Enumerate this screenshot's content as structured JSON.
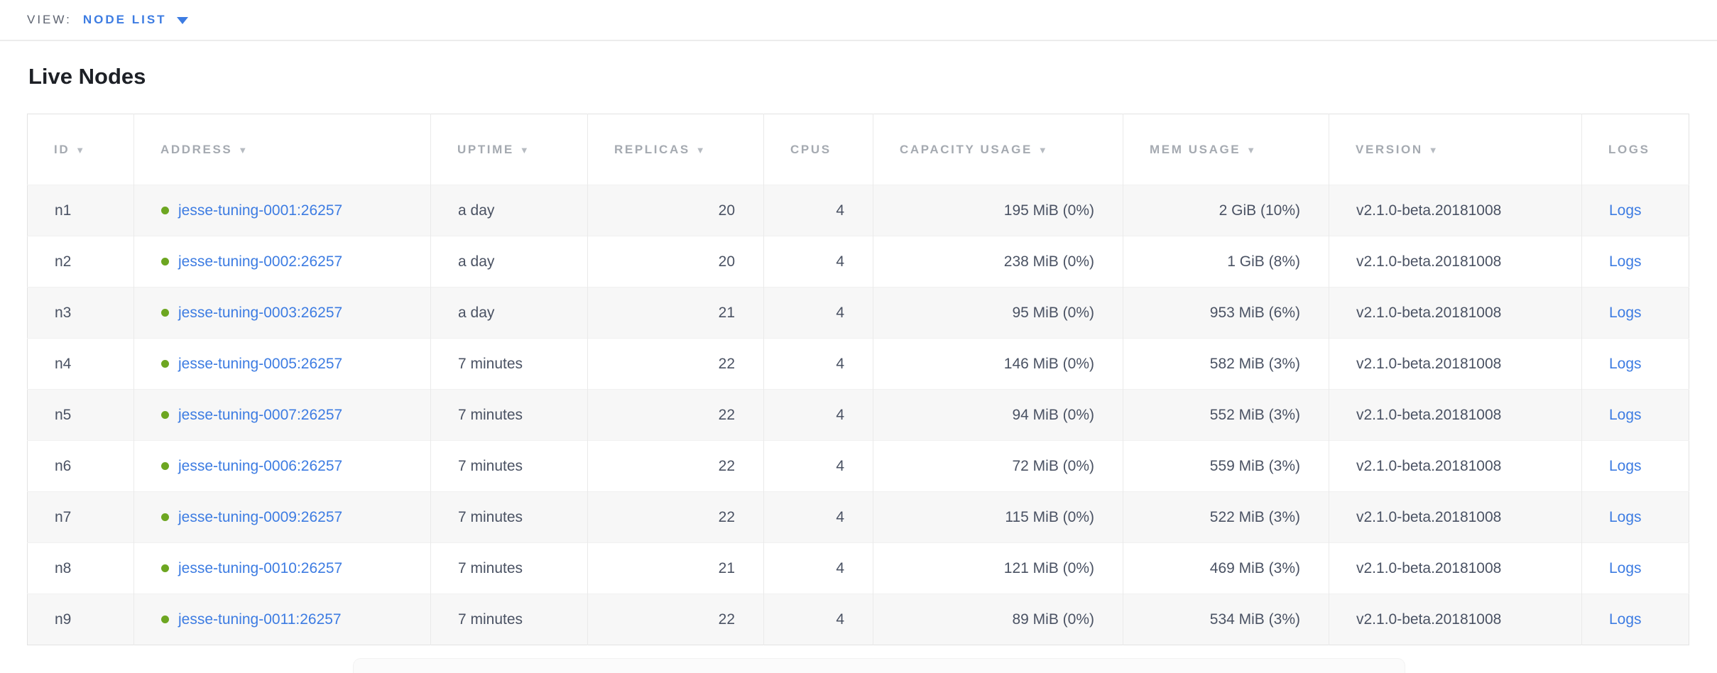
{
  "view_bar": {
    "label": "VIEW:",
    "selected": "NODE LIST"
  },
  "page": {
    "title": "Live Nodes"
  },
  "icons": {
    "sort_desc": "▼",
    "live_dot": "circle-green"
  },
  "colors": {
    "link_blue": "#3d7ce2",
    "live_green": "#6da621",
    "header_gray": "#a5aab1",
    "body_text": "#4a5263",
    "row_alt_bg": "#f7f7f7"
  },
  "table": {
    "columns": [
      {
        "id": "id",
        "label": "ID",
        "sortable": true
      },
      {
        "id": "address",
        "label": "ADDRESS",
        "sortable": true
      },
      {
        "id": "uptime",
        "label": "UPTIME",
        "sortable": true
      },
      {
        "id": "replicas",
        "label": "REPLICAS",
        "sortable": true
      },
      {
        "id": "cpus",
        "label": "CPUS",
        "sortable": false
      },
      {
        "id": "capacity",
        "label": "CAPACITY USAGE",
        "sortable": true
      },
      {
        "id": "mem",
        "label": "MEM USAGE",
        "sortable": true
      },
      {
        "id": "version",
        "label": "VERSION",
        "sortable": true
      },
      {
        "id": "logs",
        "label": "LOGS",
        "sortable": false
      }
    ],
    "rows": [
      {
        "id": "n1",
        "status": "live",
        "address": "jesse-tuning-0001:26257",
        "uptime": "a day",
        "replicas": "20",
        "cpus": "4",
        "capacity": "195 MiB (0%)",
        "mem": "2 GiB (10%)",
        "version": "v2.1.0-beta.20181008",
        "logs": "Logs"
      },
      {
        "id": "n2",
        "status": "live",
        "address": "jesse-tuning-0002:26257",
        "uptime": "a day",
        "replicas": "20",
        "cpus": "4",
        "capacity": "238 MiB (0%)",
        "mem": "1 GiB (8%)",
        "version": "v2.1.0-beta.20181008",
        "logs": "Logs"
      },
      {
        "id": "n3",
        "status": "live",
        "address": "jesse-tuning-0003:26257",
        "uptime": "a day",
        "replicas": "21",
        "cpus": "4",
        "capacity": "95 MiB (0%)",
        "mem": "953 MiB (6%)",
        "version": "v2.1.0-beta.20181008",
        "logs": "Logs"
      },
      {
        "id": "n4",
        "status": "live",
        "address": "jesse-tuning-0005:26257",
        "uptime": "7 minutes",
        "replicas": "22",
        "cpus": "4",
        "capacity": "146 MiB (0%)",
        "mem": "582 MiB (3%)",
        "version": "v2.1.0-beta.20181008",
        "logs": "Logs"
      },
      {
        "id": "n5",
        "status": "live",
        "address": "jesse-tuning-0007:26257",
        "uptime": "7 minutes",
        "replicas": "22",
        "cpus": "4",
        "capacity": "94 MiB (0%)",
        "mem": "552 MiB (3%)",
        "version": "v2.1.0-beta.20181008",
        "logs": "Logs"
      },
      {
        "id": "n6",
        "status": "live",
        "address": "jesse-tuning-0006:26257",
        "uptime": "7 minutes",
        "replicas": "22",
        "cpus": "4",
        "capacity": "72 MiB (0%)",
        "mem": "559 MiB (3%)",
        "version": "v2.1.0-beta.20181008",
        "logs": "Logs"
      },
      {
        "id": "n7",
        "status": "live",
        "address": "jesse-tuning-0009:26257",
        "uptime": "7 minutes",
        "replicas": "22",
        "cpus": "4",
        "capacity": "115 MiB (0%)",
        "mem": "522 MiB (3%)",
        "version": "v2.1.0-beta.20181008",
        "logs": "Logs"
      },
      {
        "id": "n8",
        "status": "live",
        "address": "jesse-tuning-0010:26257",
        "uptime": "7 minutes",
        "replicas": "21",
        "cpus": "4",
        "capacity": "121 MiB (0%)",
        "mem": "469 MiB (3%)",
        "version": "v2.1.0-beta.20181008",
        "logs": "Logs"
      },
      {
        "id": "n9",
        "status": "live",
        "address": "jesse-tuning-0011:26257",
        "uptime": "7 minutes",
        "replicas": "22",
        "cpus": "4",
        "capacity": "89 MiB (0%)",
        "mem": "534 MiB (3%)",
        "version": "v2.1.0-beta.20181008",
        "logs": "Logs"
      }
    ]
  }
}
